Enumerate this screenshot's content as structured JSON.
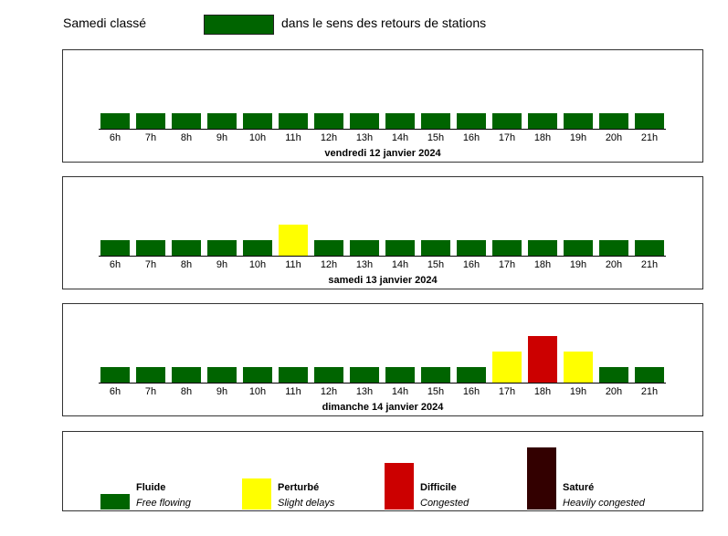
{
  "header": {
    "title": "Samedi classé",
    "direction_label": "dans le sens des retours de stations",
    "direction_color": "#006400"
  },
  "colors": {
    "fluide": "#006400",
    "perturbe": "#ffff00",
    "difficile": "#cc0000",
    "sature": "#330000",
    "axis": "#000000"
  },
  "chart_data": [
    {
      "type": "bar",
      "title": "vendredi 12 janvier 2024",
      "categories": [
        "6h",
        "7h",
        "8h",
        "9h",
        "10h",
        "11h",
        "12h",
        "13h",
        "14h",
        "15h",
        "16h",
        "17h",
        "18h",
        "19h",
        "20h",
        "21h"
      ],
      "levels": [
        "fluide",
        "fluide",
        "fluide",
        "fluide",
        "fluide",
        "fluide",
        "fluide",
        "fluide",
        "fluide",
        "fluide",
        "fluide",
        "fluide",
        "fluide",
        "fluide",
        "fluide",
        "fluide"
      ],
      "values": [
        1,
        1,
        1,
        1,
        1,
        1,
        1,
        1,
        1,
        1,
        1,
        1,
        1,
        1,
        1,
        1
      ],
      "ylim": [
        0,
        4
      ],
      "grid": false
    },
    {
      "type": "bar",
      "title": "samedi 13 janvier 2024",
      "categories": [
        "6h",
        "7h",
        "8h",
        "9h",
        "10h",
        "11h",
        "12h",
        "13h",
        "14h",
        "15h",
        "16h",
        "17h",
        "18h",
        "19h",
        "20h",
        "21h"
      ],
      "levels": [
        "fluide",
        "fluide",
        "fluide",
        "fluide",
        "fluide",
        "perturbe",
        "fluide",
        "fluide",
        "fluide",
        "fluide",
        "fluide",
        "fluide",
        "fluide",
        "fluide",
        "fluide",
        "fluide"
      ],
      "values": [
        1,
        1,
        1,
        1,
        1,
        2,
        1,
        1,
        1,
        1,
        1,
        1,
        1,
        1,
        1,
        1
      ],
      "ylim": [
        0,
        4
      ],
      "grid": false
    },
    {
      "type": "bar",
      "title": "dimanche 14 janvier 2024",
      "categories": [
        "6h",
        "7h",
        "8h",
        "9h",
        "10h",
        "11h",
        "12h",
        "13h",
        "14h",
        "15h",
        "16h",
        "17h",
        "18h",
        "19h",
        "20h",
        "21h"
      ],
      "levels": [
        "fluide",
        "fluide",
        "fluide",
        "fluide",
        "fluide",
        "fluide",
        "fluide",
        "fluide",
        "fluide",
        "fluide",
        "fluide",
        "perturbe",
        "difficile",
        "perturbe",
        "fluide",
        "fluide"
      ],
      "values": [
        1,
        1,
        1,
        1,
        1,
        1,
        1,
        1,
        1,
        1,
        1,
        2,
        3,
        2,
        1,
        1
      ],
      "ylim": [
        0,
        4
      ],
      "grid": false
    }
  ],
  "legend": {
    "items": [
      {
        "key": "fluide",
        "label": "Fluide",
        "sublabel": "Free flowing",
        "value": 1
      },
      {
        "key": "perturbe",
        "label": "Perturbé",
        "sublabel": "Slight delays",
        "value": 2
      },
      {
        "key": "difficile",
        "label": "Difficile",
        "sublabel": "Congested",
        "value": 3
      },
      {
        "key": "sature",
        "label": "Saturé",
        "sublabel": "Heavily congested",
        "value": 4
      }
    ]
  }
}
